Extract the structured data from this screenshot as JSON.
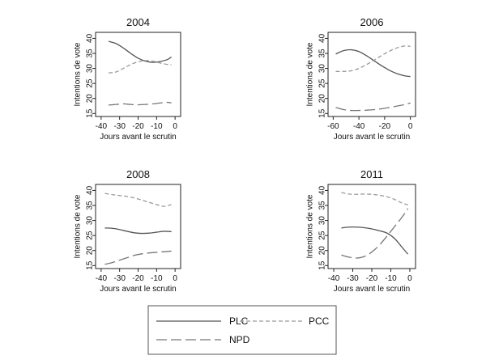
{
  "legend": {
    "entries": [
      {
        "name": "PLC",
        "color": "#555555",
        "dash": "solid"
      },
      {
        "name": "PCC",
        "color": "#999999",
        "dash": "short"
      },
      {
        "name": "NPD",
        "color": "#777777",
        "dash": "long"
      }
    ]
  },
  "chart_data": [
    {
      "type": "line",
      "title": "2004",
      "xlabel": "Jours avant le scrutin",
      "ylabel": "Intentions de vote",
      "xlim": [
        -43,
        3
      ],
      "ylim": [
        14,
        42
      ],
      "xticks": [
        -40,
        -30,
        -20,
        -10,
        0
      ],
      "yticks": [
        15,
        20,
        25,
        30,
        35,
        40
      ],
      "series": [
        {
          "name": "PLC",
          "x": [
            -36,
            -32,
            -28,
            -24,
            -20,
            -16,
            -12,
            -8,
            -4,
            -2
          ],
          "y": [
            39,
            38.3,
            36.8,
            35.0,
            33.4,
            32.4,
            32.0,
            32.3,
            33.0,
            33.8
          ]
        },
        {
          "name": "PCC",
          "x": [
            -36,
            -32,
            -28,
            -24,
            -20,
            -16,
            -12,
            -8,
            -4,
            -2
          ],
          "y": [
            28.5,
            28.8,
            30.0,
            31.3,
            32.2,
            32.6,
            32.4,
            31.8,
            31.3,
            31.2
          ]
        },
        {
          "name": "NPD",
          "x": [
            -36,
            -32,
            -28,
            -24,
            -20,
            -16,
            -12,
            -8,
            -4,
            -2
          ],
          "y": [
            17.8,
            18.0,
            18.2,
            18.0,
            17.9,
            18.0,
            18.2,
            18.5,
            18.7,
            18.5
          ]
        }
      ]
    },
    {
      "type": "line",
      "title": "2006",
      "xlabel": "Jours avant le scrutin",
      "ylabel": "Intentions de vote",
      "xlim": [
        -64,
        4
      ],
      "ylim": [
        14,
        42
      ],
      "xticks": [
        -60,
        -40,
        -20,
        0
      ],
      "yticks": [
        15,
        20,
        25,
        30,
        35,
        40
      ],
      "series": [
        {
          "name": "PLC",
          "x": [
            -58,
            -52,
            -46,
            -40,
            -34,
            -28,
            -22,
            -16,
            -10,
            -4,
            0
          ],
          "y": [
            34.8,
            35.9,
            36.2,
            35.6,
            34.2,
            32.5,
            30.8,
            29.3,
            28.2,
            27.5,
            27.3
          ]
        },
        {
          "name": "PCC",
          "x": [
            -58,
            -52,
            -46,
            -40,
            -34,
            -28,
            -22,
            -16,
            -10,
            -4,
            0
          ],
          "y": [
            29.0,
            29.0,
            29.2,
            30.0,
            31.3,
            32.8,
            34.4,
            35.8,
            36.9,
            37.5,
            37.3
          ]
        },
        {
          "name": "NPD",
          "x": [
            -58,
            -52,
            -46,
            -40,
            -34,
            -28,
            -22,
            -16,
            -10,
            -4,
            0
          ],
          "y": [
            17.0,
            16.3,
            16.0,
            16.0,
            16.1,
            16.3,
            16.6,
            17.0,
            17.5,
            18.0,
            18.5
          ]
        }
      ]
    },
    {
      "type": "line",
      "title": "2008",
      "xlabel": "Jours avant le scrutin",
      "ylabel": "Intentions de vote",
      "xlim": [
        -43,
        3
      ],
      "ylim": [
        14,
        42
      ],
      "xticks": [
        -40,
        -30,
        -20,
        -10,
        0
      ],
      "yticks": [
        15,
        20,
        25,
        30,
        35,
        40
      ],
      "series": [
        {
          "name": "PLC",
          "x": [
            -38,
            -34,
            -30,
            -26,
            -22,
            -18,
            -14,
            -10,
            -6,
            -2
          ],
          "y": [
            27.5,
            27.4,
            27.0,
            26.4,
            25.9,
            25.7,
            25.8,
            26.1,
            26.4,
            26.3
          ]
        },
        {
          "name": "PCC",
          "x": [
            -38,
            -34,
            -30,
            -26,
            -22,
            -18,
            -14,
            -10,
            -6,
            -2
          ],
          "y": [
            39.0,
            38.6,
            38.3,
            38.0,
            37.5,
            36.8,
            36.0,
            35.3,
            34.7,
            35.3
          ]
        },
        {
          "name": "NPD",
          "x": [
            -38,
            -34,
            -30,
            -26,
            -22,
            -18,
            -14,
            -10,
            -6,
            -2
          ],
          "y": [
            15.4,
            16.0,
            16.8,
            17.6,
            18.4,
            18.9,
            19.2,
            19.4,
            19.6,
            19.8
          ]
        }
      ]
    },
    {
      "type": "line",
      "title": "2011",
      "xlabel": "Jours avant le scrutin",
      "ylabel": "Intentions de vote",
      "xlim": [
        -43,
        3
      ],
      "ylim": [
        14,
        42
      ],
      "xticks": [
        -40,
        -30,
        -20,
        -10,
        0
      ],
      "yticks": [
        15,
        20,
        25,
        30,
        35,
        40
      ],
      "series": [
        {
          "name": "PLC",
          "x": [
            -36,
            -32,
            -28,
            -24,
            -20,
            -16,
            -12,
            -8,
            -4,
            -1
          ],
          "y": [
            27.5,
            27.8,
            27.8,
            27.6,
            27.2,
            26.6,
            25.8,
            24.0,
            21.0,
            18.8
          ]
        },
        {
          "name": "PCC",
          "x": [
            -36,
            -32,
            -28,
            -24,
            -20,
            -16,
            -12,
            -8,
            -4,
            -1
          ],
          "y": [
            39.3,
            38.8,
            38.7,
            38.8,
            38.7,
            38.4,
            37.9,
            37.0,
            35.8,
            35.2
          ]
        },
        {
          "name": "NPD",
          "x": [
            -36,
            -32,
            -28,
            -24,
            -20,
            -16,
            -12,
            -8,
            -4,
            -1
          ],
          "y": [
            18.5,
            17.8,
            17.5,
            18.0,
            19.5,
            21.8,
            24.8,
            28.0,
            31.2,
            34.0
          ]
        }
      ]
    }
  ]
}
